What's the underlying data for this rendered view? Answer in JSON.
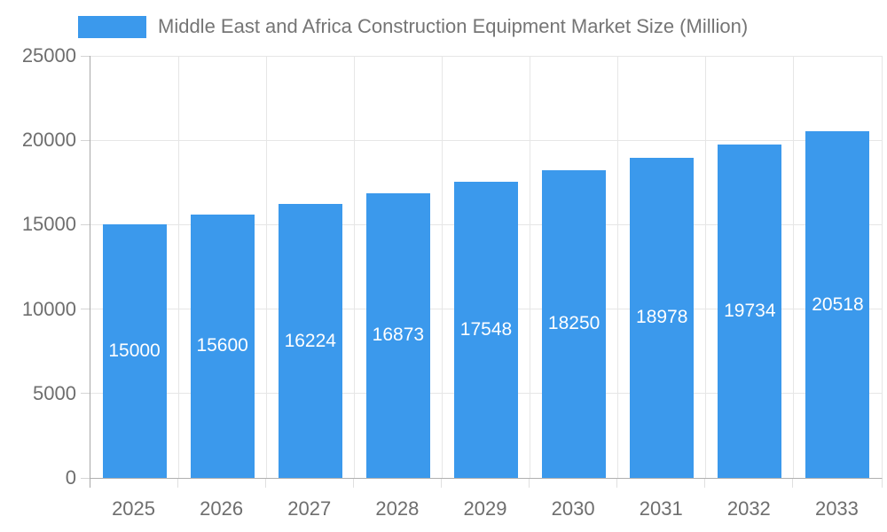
{
  "legend": {
    "label": "Middle East and Africa Construction Equipment Market Size (Million)"
  },
  "chart_data": {
    "type": "bar",
    "title": "Middle East and Africa Construction Equipment Market Size (Million)",
    "categories": [
      "2025",
      "2026",
      "2027",
      "2028",
      "2029",
      "2030",
      "2031",
      "2032",
      "2033"
    ],
    "values": [
      15000,
      15600,
      16224,
      16873,
      17548,
      18250,
      18978,
      19734,
      20518
    ],
    "xlabel": "",
    "ylabel": "",
    "ylim": [
      0,
      25000
    ],
    "yticks": [
      0,
      5000,
      10000,
      15000,
      20000,
      25000
    ],
    "grid": "on",
    "legend_position": "top-left",
    "value_labels": "inside-center-white",
    "colors": {
      "bar": "#3B99EC",
      "value_label": "#FFFFFF",
      "axis_text": "#6E6E6E",
      "legend_text": "#757575",
      "gridline": "#E6E6E6",
      "axis_line": "#A9A9A9"
    }
  }
}
